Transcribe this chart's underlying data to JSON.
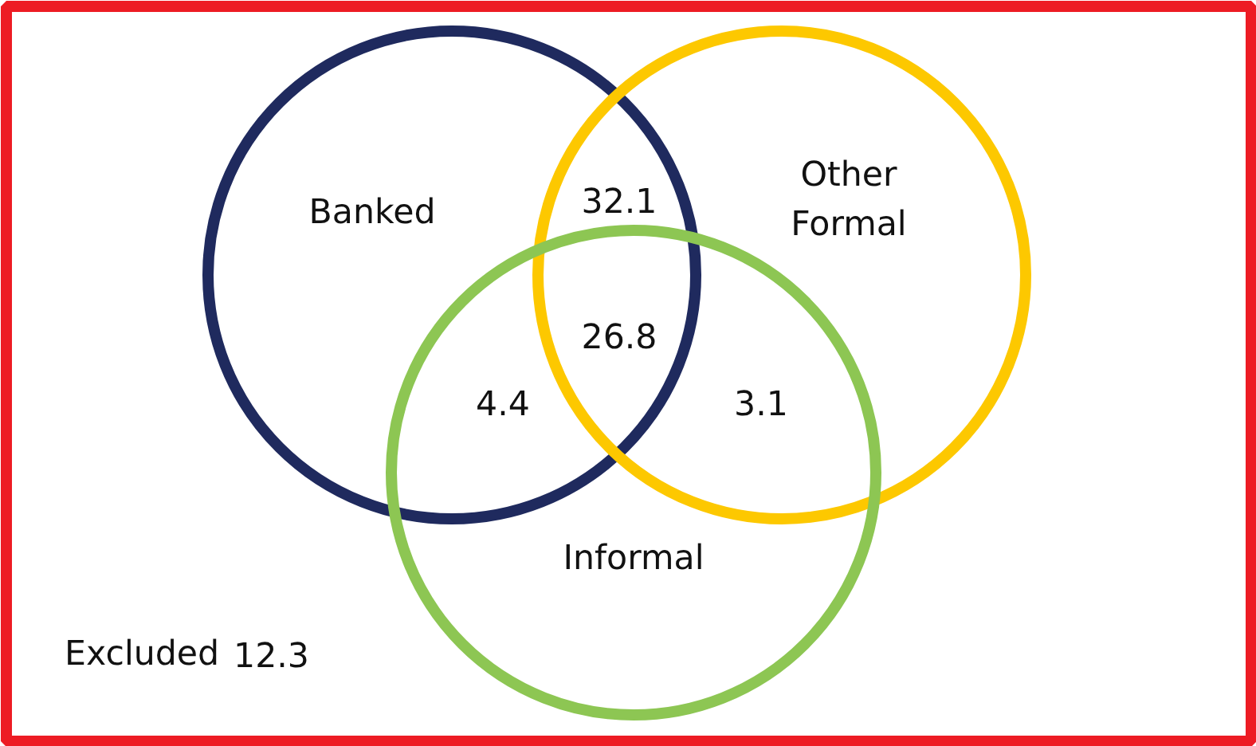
{
  "chart_data": {
    "type": "other",
    "categories": [
      null,
      null,
      null,
      null,
      "Excluded"
    ],
    "values": [
      32.1,
      26.8,
      4.4,
      3.1,
      12.3
    ],
    "data_labels": true,
    "annotations": [
      "Banked",
      "Other Formal",
      "Informal"
    ]
  }
}
